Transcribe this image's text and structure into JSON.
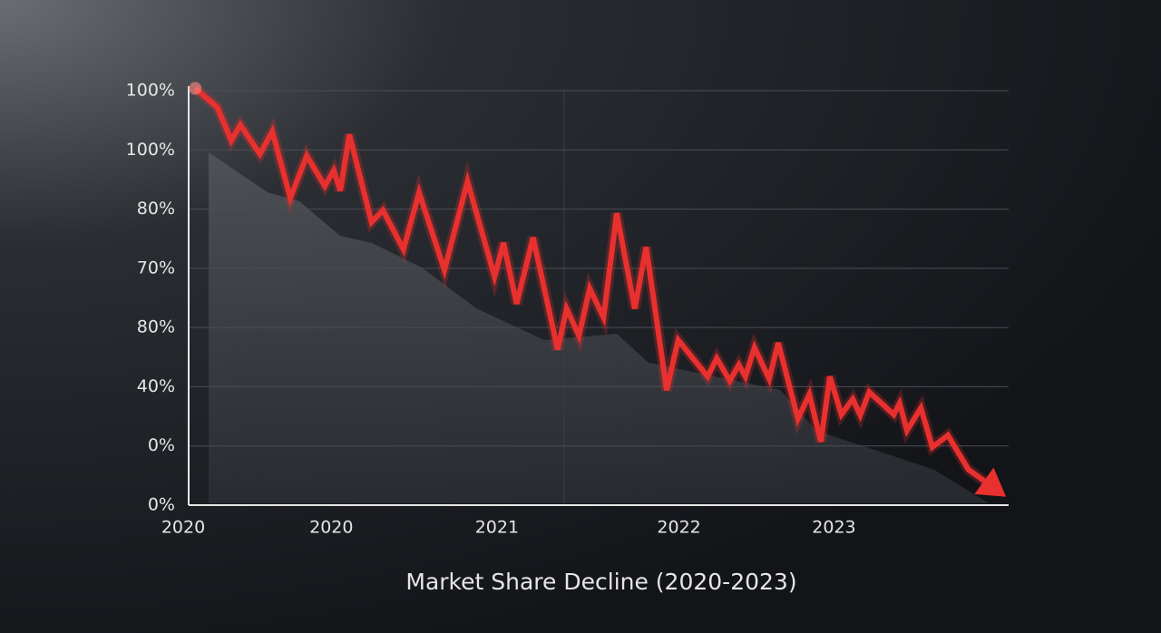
{
  "chart_data": {
    "type": "line",
    "title": "Market Share Decline (2020-2023)",
    "xlim": [
      0,
      100
    ],
    "xticks": [
      {
        "value": 0,
        "label": "2020"
      },
      {
        "value": 17.4,
        "label": "2020"
      },
      {
        "value": 37.6,
        "label": "2021"
      },
      {
        "value": 59.8,
        "label": "2022"
      },
      {
        "value": 78.7,
        "label": "2023"
      }
    ],
    "ylim": [
      0,
      7
    ],
    "yticks": [
      {
        "value": 0,
        "label": "0%"
      },
      {
        "value": 1,
        "label": "0%"
      },
      {
        "value": 2,
        "label": "40%"
      },
      {
        "value": 3,
        "label": "80%"
      },
      {
        "value": 4,
        "label": "70%"
      },
      {
        "value": 5,
        "label": "80%"
      },
      {
        "value": 6,
        "label": "100%"
      },
      {
        "value": 7,
        "label": "100%"
      }
    ],
    "grid": true,
    "series": [
      {
        "color": "#e8302e",
        "x": [
          0.8,
          3.5,
          5.2,
          6.3,
          8.7,
          10.2,
          12.4,
          14.4,
          16.6,
          17.7,
          18.5,
          19.6,
          22.3,
          23.7,
          26.2,
          28.1,
          31.2,
          34.0,
          37.3,
          38.4,
          40.0,
          42.0,
          45.0,
          46.1,
          47.6,
          48.9,
          50.6,
          52.2,
          54.4,
          55.8,
          58.3,
          59.7,
          63.3,
          64.4,
          66.0,
          67.1,
          67.9,
          69.0,
          70.8,
          71.9,
          74.3,
          75.7,
          77.1,
          78.2,
          79.6,
          81.0,
          81.9,
          83.0,
          86.0,
          86.7,
          87.6,
          89.3,
          90.7,
          92.6,
          95.1,
          97.0
        ],
        "values": [
          7.04,
          6.72,
          6.16,
          6.42,
          5.93,
          6.31,
          5.19,
          5.9,
          5.39,
          5.65,
          5.31,
          6.26,
          4.78,
          4.98,
          4.32,
          5.28,
          3.97,
          5.47,
          3.86,
          4.43,
          3.4,
          4.52,
          2.63,
          3.32,
          2.86,
          3.66,
          3.17,
          4.93,
          3.32,
          4.36,
          1.94,
          2.79,
          2.17,
          2.48,
          2.1,
          2.37,
          2.17,
          2.66,
          2.13,
          2.74,
          1.46,
          1.87,
          1.07,
          2.17,
          1.53,
          1.79,
          1.52,
          1.91,
          1.53,
          1.72,
          1.26,
          1.64,
          0.98,
          1.18,
          0.6,
          0.41
        ]
      }
    ]
  }
}
